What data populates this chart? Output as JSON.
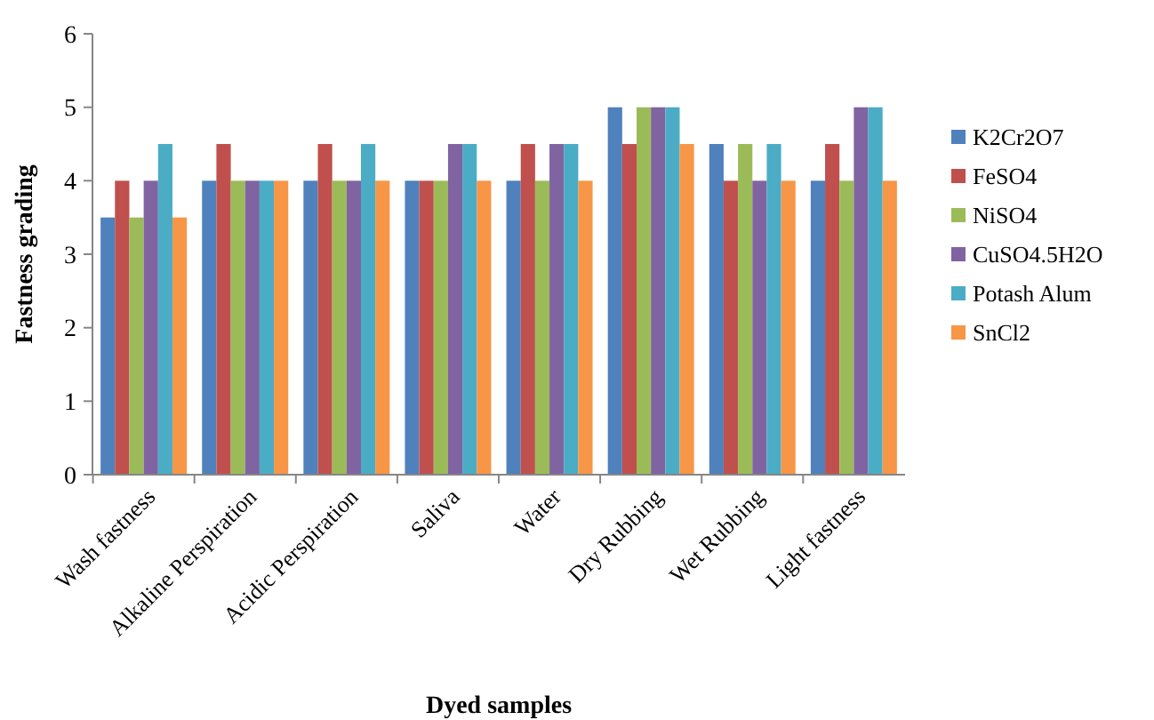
{
  "chart_data": {
    "type": "bar",
    "xlabel": "Dyed samples",
    "ylabel": "Fastness grading",
    "categories": [
      "Wash fastness",
      "Alkaline Perspiration",
      "Acidic Perspiration",
      "Saliva",
      "Water",
      "Dry Rubbing",
      "Wet Rubbing",
      "Light fastness"
    ],
    "series": [
      {
        "name": "K2Cr2O7",
        "color": "#4f81bd",
        "values": [
          3.5,
          4,
          4,
          4,
          4,
          5,
          4.5,
          4
        ]
      },
      {
        "name": "FeSO4",
        "color": "#c0504d",
        "values": [
          4,
          4.5,
          4.5,
          4,
          4.5,
          4.5,
          4,
          4.5
        ]
      },
      {
        "name": "NiSO4",
        "color": "#9bbb59",
        "values": [
          3.5,
          4,
          4,
          4,
          4,
          5,
          4.5,
          4
        ]
      },
      {
        "name": "CuSO4.5H2O",
        "color": "#8064a2",
        "values": [
          4,
          4,
          4,
          4.5,
          4.5,
          5,
          4,
          5
        ]
      },
      {
        "name": "Potash Alum",
        "color": "#4bacc6",
        "values": [
          4.5,
          4,
          4.5,
          4.5,
          4.5,
          5,
          4.5,
          5
        ]
      },
      {
        "name": "SnCl2",
        "color": "#f79646",
        "values": [
          3.5,
          4,
          4,
          4,
          4,
          4.5,
          4,
          4
        ]
      }
    ],
    "ylim": [
      0,
      6
    ],
    "yticks": [
      0,
      1,
      2,
      3,
      4,
      5,
      6
    ],
    "grid": false,
    "legend": "right"
  }
}
